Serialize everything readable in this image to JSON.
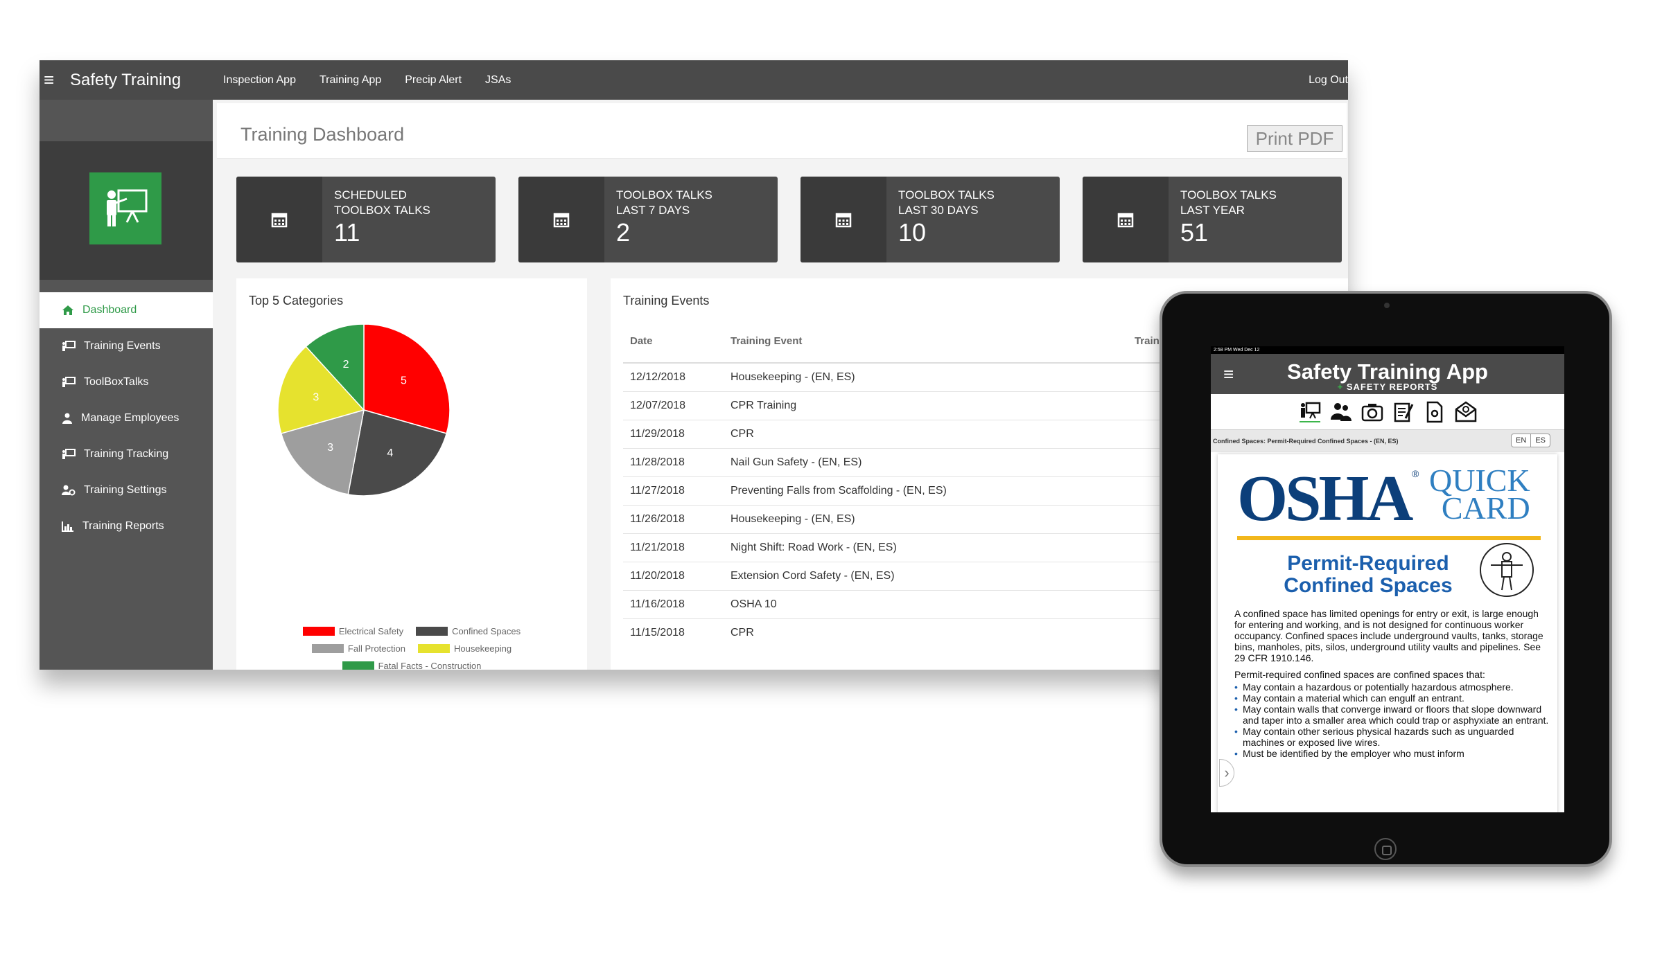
{
  "app": {
    "title": "Safety Training",
    "menu_icon": "hamburger-icon",
    "nav": [
      "Inspection App",
      "Training App",
      "Precip Alert",
      "JSAs"
    ],
    "logout": "Log Out",
    "brand_color": "#2f9a48"
  },
  "sidebar": {
    "logo_icon": "trainer-presentation-icon",
    "items": [
      {
        "label": "Dashboard",
        "icon": "home-icon",
        "active": true
      },
      {
        "label": "Training Events",
        "icon": "presentation-icon"
      },
      {
        "label": "ToolBoxTalks",
        "icon": "presentation-icon"
      },
      {
        "label": "Manage Employees",
        "icon": "user-icon"
      },
      {
        "label": "Training Tracking",
        "icon": "presentation-icon"
      },
      {
        "label": "Training Settings",
        "icon": "users-gear-icon"
      },
      {
        "label": "Training Reports",
        "icon": "bar-chart-icon"
      }
    ]
  },
  "page": {
    "title": "Training Dashboard",
    "print_button": "Print PDF"
  },
  "stats": [
    {
      "line1": "SCHEDULED",
      "line2": "TOOLBOX TALKS",
      "value": "11",
      "icon": "calendar-icon"
    },
    {
      "line1": "TOOLBOX TALKS",
      "line2": "LAST 7 DAYS",
      "value": "2",
      "icon": "calendar-icon"
    },
    {
      "line1": "TOOLBOX TALKS",
      "line2": "LAST 30 DAYS",
      "value": "10",
      "icon": "calendar-icon"
    },
    {
      "line1": "TOOLBOX TALKS",
      "line2": "LAST YEAR",
      "value": "51",
      "icon": "calendar-icon"
    }
  ],
  "categories_card": {
    "title": "Top 5 Categories"
  },
  "chart_data": {
    "type": "pie",
    "title": "Top 5 Categories",
    "slices": [
      {
        "label": "Electrical Safety",
        "value": 5,
        "color": "#ff0000"
      },
      {
        "label": "Confined Spaces",
        "value": 4,
        "color": "#4a4a4a"
      },
      {
        "label": "Fall Protection",
        "value": 3,
        "color": "#9e9e9e"
      },
      {
        "label": "Housekeeping",
        "value": 3,
        "color": "#e6e22e"
      },
      {
        "label": "Fatal Facts - Construction",
        "value": 2,
        "color": "#2f9a48"
      }
    ],
    "legend_position": "bottom"
  },
  "events_card": {
    "title": "Training Events",
    "columns": [
      "Date",
      "Training Event",
      "Trainer"
    ],
    "rows": [
      [
        "12/12/2018",
        "Housekeeping - (EN, ES)"
      ],
      [
        "12/07/2018",
        "CPR Training"
      ],
      [
        "11/29/2018",
        "CPR"
      ],
      [
        "11/28/2018",
        "Nail Gun Safety - (EN, ES)"
      ],
      [
        "11/27/2018",
        "Preventing Falls from Scaffolding - (EN, ES)"
      ],
      [
        "11/26/2018",
        "Housekeeping - (EN, ES)"
      ],
      [
        "11/21/2018",
        "Night Shift: Road Work - (EN, ES)"
      ],
      [
        "11/20/2018",
        "Extension Cord Safety - (EN, ES)"
      ],
      [
        "11/16/2018",
        "OSHA 10"
      ],
      [
        "11/15/2018",
        "CPR"
      ]
    ]
  },
  "tablet": {
    "status_bar": "2:58 PM  Wed Dec 12",
    "app_title": "Safety Training App",
    "app_subtitle_plus": "+",
    "app_subtitle": "SAFETY REPORTS",
    "toolbar_icons": [
      "trainer-icon",
      "people-icon",
      "camera-icon",
      "edit-icon",
      "settings-doc-icon",
      "mail-icon"
    ],
    "doc_title": "Confined Spaces: Permit-Required Confined Spaces - (EN, ES)",
    "lang_options": [
      "EN",
      "ES"
    ],
    "doc": {
      "brand": "OSHA",
      "reg": "®",
      "quick1": "QUICK",
      "quick2": "CARD",
      "heading1": "Permit-Required",
      "heading2": "Confined Spaces",
      "intro": "A confined space has limited openings for entry or exit, is large enough for entering and working, and is not designed for continuous worker occupancy. Confined spaces include underground vaults, tanks, storage bins, manholes, pits, silos, underground utility vaults and pipelines. See 29 CFR 1910.146.",
      "list_intro": "Permit-required confined spaces are confined spaces that:",
      "bullets": [
        "May contain a hazardous or potentially hazardous atmosphere.",
        "May contain a material which can engulf an entrant.",
        "May contain walls that converge inward or floors that slope downward and taper into a smaller area which could trap or asphyxiate an entrant.",
        "May contain other serious physical hazards such as unguarded machines or exposed live wires.",
        "Must be identified by the employer who must inform"
      ]
    }
  }
}
